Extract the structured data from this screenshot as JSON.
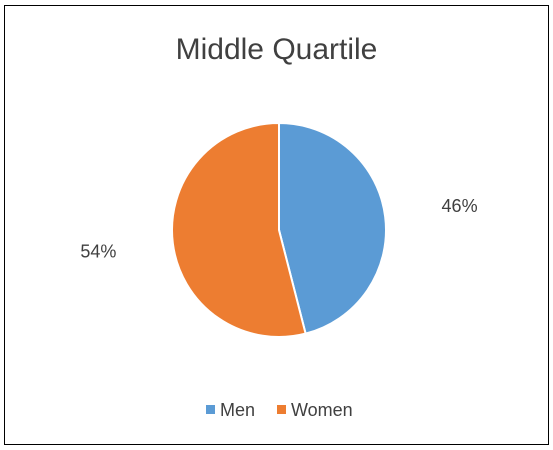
{
  "chart_data": {
    "type": "pie",
    "title": "Middle Quartile",
    "categories": [
      "Men",
      "Women"
    ],
    "values": [
      46,
      54
    ],
    "data_labels": [
      "46%",
      "54%"
    ],
    "colors": [
      "#5b9bd5",
      "#ed7d31"
    ],
    "legend_position": "bottom",
    "start_angle": "12 o'clock",
    "direction": "clockwise"
  }
}
